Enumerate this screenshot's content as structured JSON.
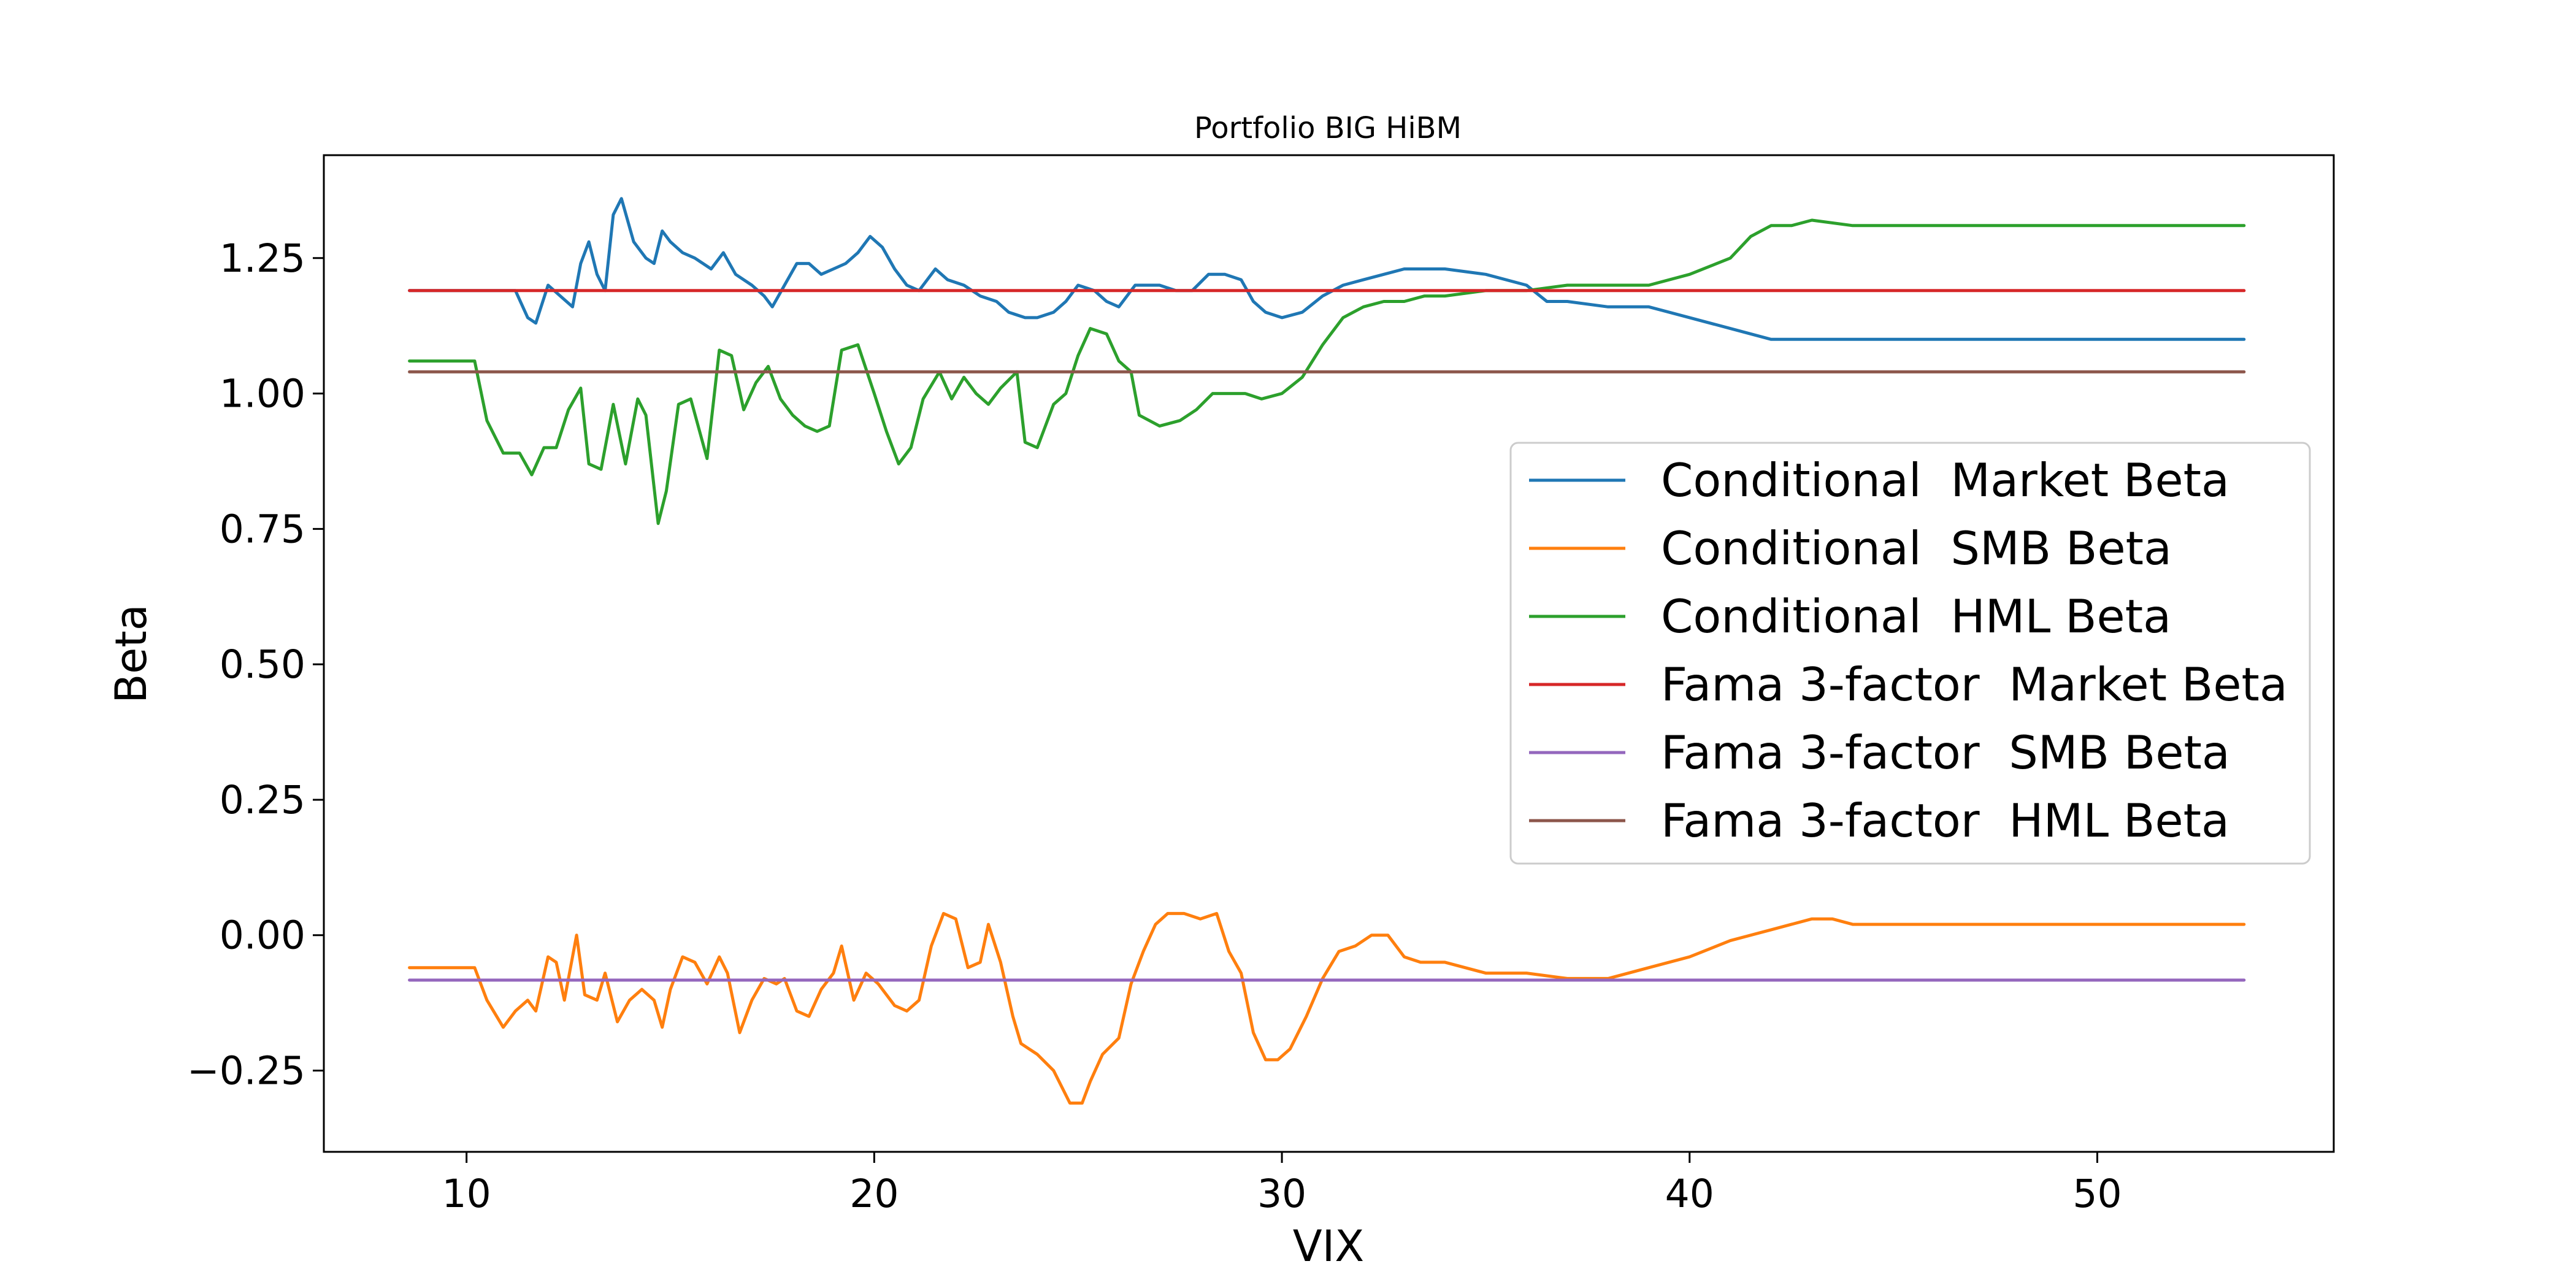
{
  "chart_data": {
    "type": "line",
    "title": "Portfolio BIG HiBM",
    "xlabel": "VIX",
    "ylabel": "Beta",
    "xlim": [
      6.5,
      55.8
    ],
    "ylim": [
      -0.4,
      1.44
    ],
    "xticks": [
      10,
      20,
      30,
      40,
      50
    ],
    "xtick_labels": [
      "10",
      "20",
      "30",
      "40",
      "50"
    ],
    "yticks": [
      -0.25,
      0.0,
      0.25,
      0.5,
      0.75,
      1.0,
      1.25
    ],
    "ytick_labels": [
      "−0.25",
      "0.00",
      "0.25",
      "0.50",
      "0.75",
      "1.00",
      "1.25"
    ],
    "grid": false,
    "legend_position": "center-right",
    "series": [
      {
        "name": "Conditional  Market Beta",
        "color": "#1f77b4",
        "points": [
          [
            8.6,
            1.19
          ],
          [
            10.0,
            1.19
          ],
          [
            10.5,
            1.19
          ],
          [
            11.2,
            1.19
          ],
          [
            11.5,
            1.14
          ],
          [
            11.7,
            1.13
          ],
          [
            12.0,
            1.2
          ],
          [
            12.3,
            1.18
          ],
          [
            12.6,
            1.16
          ],
          [
            12.8,
            1.24
          ],
          [
            13.0,
            1.28
          ],
          [
            13.2,
            1.22
          ],
          [
            13.4,
            1.19
          ],
          [
            13.6,
            1.33
          ],
          [
            13.8,
            1.36
          ],
          [
            14.1,
            1.28
          ],
          [
            14.4,
            1.25
          ],
          [
            14.6,
            1.24
          ],
          [
            14.8,
            1.3
          ],
          [
            15.0,
            1.28
          ],
          [
            15.3,
            1.26
          ],
          [
            15.6,
            1.25
          ],
          [
            16.0,
            1.23
          ],
          [
            16.3,
            1.26
          ],
          [
            16.6,
            1.22
          ],
          [
            17.0,
            1.2
          ],
          [
            17.3,
            1.18
          ],
          [
            17.5,
            1.16
          ],
          [
            17.8,
            1.2
          ],
          [
            18.1,
            1.24
          ],
          [
            18.4,
            1.24
          ],
          [
            18.7,
            1.22
          ],
          [
            19.0,
            1.23
          ],
          [
            19.3,
            1.24
          ],
          [
            19.6,
            1.26
          ],
          [
            19.9,
            1.29
          ],
          [
            20.2,
            1.27
          ],
          [
            20.5,
            1.23
          ],
          [
            20.8,
            1.2
          ],
          [
            21.1,
            1.19
          ],
          [
            21.5,
            1.23
          ],
          [
            21.8,
            1.21
          ],
          [
            22.2,
            1.2
          ],
          [
            22.6,
            1.18
          ],
          [
            23.0,
            1.17
          ],
          [
            23.3,
            1.15
          ],
          [
            23.7,
            1.14
          ],
          [
            24.0,
            1.14
          ],
          [
            24.4,
            1.15
          ],
          [
            24.7,
            1.17
          ],
          [
            25.0,
            1.2
          ],
          [
            25.4,
            1.19
          ],
          [
            25.7,
            1.17
          ],
          [
            26.0,
            1.16
          ],
          [
            26.4,
            1.2
          ],
          [
            26.7,
            1.2
          ],
          [
            27.0,
            1.2
          ],
          [
            27.4,
            1.19
          ],
          [
            27.8,
            1.19
          ],
          [
            28.2,
            1.22
          ],
          [
            28.6,
            1.22
          ],
          [
            29.0,
            1.21
          ],
          [
            29.3,
            1.17
          ],
          [
            29.6,
            1.15
          ],
          [
            30.0,
            1.14
          ],
          [
            30.5,
            1.15
          ],
          [
            31.0,
            1.18
          ],
          [
            31.5,
            1.2
          ],
          [
            32.0,
            1.21
          ],
          [
            32.5,
            1.22
          ],
          [
            33.0,
            1.23
          ],
          [
            34.0,
            1.23
          ],
          [
            35.0,
            1.22
          ],
          [
            36.0,
            1.2
          ],
          [
            36.5,
            1.17
          ],
          [
            37.0,
            1.17
          ],
          [
            38.0,
            1.16
          ],
          [
            39.0,
            1.16
          ],
          [
            40.0,
            1.14
          ],
          [
            41.0,
            1.12
          ],
          [
            42.0,
            1.1
          ],
          [
            43.0,
            1.1
          ],
          [
            44.0,
            1.1
          ],
          [
            53.6,
            1.1
          ]
        ]
      },
      {
        "name": "Conditional  SMB Beta",
        "color": "#ff7f0e",
        "points": [
          [
            8.6,
            -0.06
          ],
          [
            10.2,
            -0.06
          ],
          [
            10.5,
            -0.12
          ],
          [
            10.9,
            -0.17
          ],
          [
            11.2,
            -0.14
          ],
          [
            11.5,
            -0.12
          ],
          [
            11.7,
            -0.14
          ],
          [
            12.0,
            -0.04
          ],
          [
            12.2,
            -0.05
          ],
          [
            12.4,
            -0.12
          ],
          [
            12.7,
            0.0
          ],
          [
            12.9,
            -0.11
          ],
          [
            13.2,
            -0.12
          ],
          [
            13.4,
            -0.07
          ],
          [
            13.7,
            -0.16
          ],
          [
            14.0,
            -0.12
          ],
          [
            14.3,
            -0.1
          ],
          [
            14.6,
            -0.12
          ],
          [
            14.8,
            -0.17
          ],
          [
            15.0,
            -0.1
          ],
          [
            15.3,
            -0.04
          ],
          [
            15.6,
            -0.05
          ],
          [
            15.9,
            -0.09
          ],
          [
            16.2,
            -0.04
          ],
          [
            16.4,
            -0.07
          ],
          [
            16.7,
            -0.18
          ],
          [
            17.0,
            -0.12
          ],
          [
            17.3,
            -0.08
          ],
          [
            17.6,
            -0.09
          ],
          [
            17.8,
            -0.08
          ],
          [
            18.1,
            -0.14
          ],
          [
            18.4,
            -0.15
          ],
          [
            18.7,
            -0.1
          ],
          [
            19.0,
            -0.07
          ],
          [
            19.2,
            -0.02
          ],
          [
            19.5,
            -0.12
          ],
          [
            19.8,
            -0.07
          ],
          [
            20.1,
            -0.09
          ],
          [
            20.5,
            -0.13
          ],
          [
            20.8,
            -0.14
          ],
          [
            21.1,
            -0.12
          ],
          [
            21.4,
            -0.02
          ],
          [
            21.7,
            0.04
          ],
          [
            22.0,
            0.03
          ],
          [
            22.3,
            -0.06
          ],
          [
            22.6,
            -0.05
          ],
          [
            22.8,
            0.02
          ],
          [
            23.1,
            -0.05
          ],
          [
            23.4,
            -0.15
          ],
          [
            23.6,
            -0.2
          ],
          [
            24.0,
            -0.22
          ],
          [
            24.4,
            -0.25
          ],
          [
            24.8,
            -0.31
          ],
          [
            25.1,
            -0.31
          ],
          [
            25.3,
            -0.27
          ],
          [
            25.6,
            -0.22
          ],
          [
            26.0,
            -0.19
          ],
          [
            26.3,
            -0.09
          ],
          [
            26.6,
            -0.03
          ],
          [
            26.9,
            0.02
          ],
          [
            27.2,
            0.04
          ],
          [
            27.6,
            0.04
          ],
          [
            28.0,
            0.03
          ],
          [
            28.4,
            0.04
          ],
          [
            28.7,
            -0.03
          ],
          [
            29.0,
            -0.07
          ],
          [
            29.3,
            -0.18
          ],
          [
            29.6,
            -0.23
          ],
          [
            29.9,
            -0.23
          ],
          [
            30.2,
            -0.21
          ],
          [
            30.6,
            -0.15
          ],
          [
            31.0,
            -0.08
          ],
          [
            31.4,
            -0.03
          ],
          [
            31.8,
            -0.02
          ],
          [
            32.2,
            0.0
          ],
          [
            32.6,
            0.0
          ],
          [
            33.0,
            -0.04
          ],
          [
            33.4,
            -0.05
          ],
          [
            34.0,
            -0.05
          ],
          [
            35.0,
            -0.07
          ],
          [
            36.0,
            -0.07
          ],
          [
            37.0,
            -0.08
          ],
          [
            38.0,
            -0.08
          ],
          [
            39.0,
            -0.06
          ],
          [
            40.0,
            -0.04
          ],
          [
            41.0,
            -0.01
          ],
          [
            42.0,
            0.01
          ],
          [
            43.0,
            0.03
          ],
          [
            43.5,
            0.03
          ],
          [
            44.0,
            0.02
          ],
          [
            45.0,
            0.02
          ],
          [
            53.6,
            0.02
          ]
        ]
      },
      {
        "name": "Conditional  HML Beta",
        "color": "#2ca02c",
        "points": [
          [
            8.6,
            1.06
          ],
          [
            10.2,
            1.06
          ],
          [
            10.5,
            0.95
          ],
          [
            10.9,
            0.89
          ],
          [
            11.3,
            0.89
          ],
          [
            11.6,
            0.85
          ],
          [
            11.9,
            0.9
          ],
          [
            12.2,
            0.9
          ],
          [
            12.5,
            0.97
          ],
          [
            12.8,
            1.01
          ],
          [
            13.0,
            0.87
          ],
          [
            13.3,
            0.86
          ],
          [
            13.6,
            0.98
          ],
          [
            13.9,
            0.87
          ],
          [
            14.2,
            0.99
          ],
          [
            14.4,
            0.96
          ],
          [
            14.7,
            0.76
          ],
          [
            14.9,
            0.82
          ],
          [
            15.2,
            0.98
          ],
          [
            15.5,
            0.99
          ],
          [
            15.9,
            0.88
          ],
          [
            16.2,
            1.08
          ],
          [
            16.5,
            1.07
          ],
          [
            16.8,
            0.97
          ],
          [
            17.1,
            1.02
          ],
          [
            17.4,
            1.05
          ],
          [
            17.7,
            0.99
          ],
          [
            18.0,
            0.96
          ],
          [
            18.3,
            0.94
          ],
          [
            18.6,
            0.93
          ],
          [
            18.9,
            0.94
          ],
          [
            19.2,
            1.08
          ],
          [
            19.6,
            1.09
          ],
          [
            20.0,
            1.0
          ],
          [
            20.3,
            0.93
          ],
          [
            20.6,
            0.87
          ],
          [
            20.9,
            0.9
          ],
          [
            21.2,
            0.99
          ],
          [
            21.6,
            1.04
          ],
          [
            21.9,
            0.99
          ],
          [
            22.2,
            1.03
          ],
          [
            22.5,
            1.0
          ],
          [
            22.8,
            0.98
          ],
          [
            23.1,
            1.01
          ],
          [
            23.5,
            1.04
          ],
          [
            23.7,
            0.91
          ],
          [
            24.0,
            0.9
          ],
          [
            24.4,
            0.98
          ],
          [
            24.7,
            1.0
          ],
          [
            25.0,
            1.07
          ],
          [
            25.3,
            1.12
          ],
          [
            25.7,
            1.11
          ],
          [
            26.0,
            1.06
          ],
          [
            26.3,
            1.04
          ],
          [
            26.5,
            0.96
          ],
          [
            27.0,
            0.94
          ],
          [
            27.5,
            0.95
          ],
          [
            27.9,
            0.97
          ],
          [
            28.3,
            1.0
          ],
          [
            28.7,
            1.0
          ],
          [
            29.1,
            1.0
          ],
          [
            29.5,
            0.99
          ],
          [
            30.0,
            1.0
          ],
          [
            30.5,
            1.03
          ],
          [
            31.0,
            1.09
          ],
          [
            31.5,
            1.14
          ],
          [
            32.0,
            1.16
          ],
          [
            32.5,
            1.17
          ],
          [
            33.0,
            1.17
          ],
          [
            33.5,
            1.18
          ],
          [
            34.0,
            1.18
          ],
          [
            35.0,
            1.19
          ],
          [
            36.0,
            1.19
          ],
          [
            37.0,
            1.2
          ],
          [
            38.0,
            1.2
          ],
          [
            39.0,
            1.2
          ],
          [
            40.0,
            1.22
          ],
          [
            41.0,
            1.25
          ],
          [
            41.5,
            1.29
          ],
          [
            42.0,
            1.31
          ],
          [
            42.5,
            1.31
          ],
          [
            43.0,
            1.32
          ],
          [
            44.0,
            1.31
          ],
          [
            53.6,
            1.31
          ]
        ]
      },
      {
        "name": "Fama 3-factor  Market Beta",
        "color": "#d62728",
        "points": [
          [
            8.6,
            1.19
          ],
          [
            53.6,
            1.19
          ]
        ]
      },
      {
        "name": "Fama 3-factor  SMB Beta",
        "color": "#9467bd",
        "points": [
          [
            8.6,
            -0.083
          ],
          [
            53.6,
            -0.083
          ]
        ]
      },
      {
        "name": "Fama 3-factor  HML Beta",
        "color": "#8c564b",
        "points": [
          [
            8.6,
            1.04
          ],
          [
            53.6,
            1.04
          ]
        ]
      }
    ]
  }
}
